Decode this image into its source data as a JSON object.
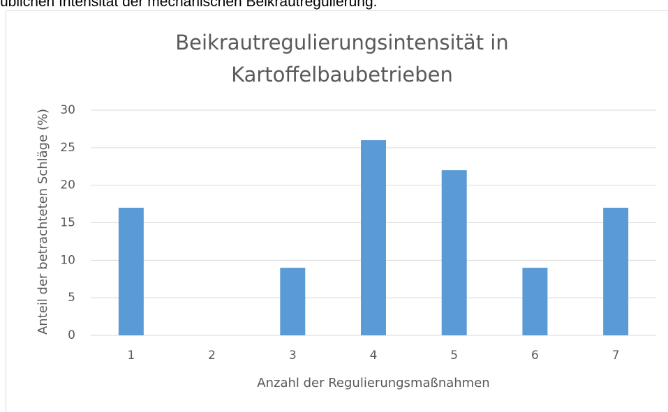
{
  "document_text": "üblichen Intensität der mechanischen Beikrautregulierung.",
  "chart_data": {
    "type": "bar",
    "title": "Beikrautregulierungsintensität in Kartoffelbaubetrieben",
    "x_label": "Anzahl der Regulierungsmaßnahmen",
    "y_label": "Anteil der betrachteten Schläge (%)",
    "categories": [
      "1",
      "2",
      "3",
      "4",
      "5",
      "6",
      "7"
    ],
    "values": [
      17,
      0,
      9,
      26,
      22,
      9,
      17
    ],
    "color": "#5b9bd5",
    "ylim": [
      0,
      30
    ],
    "yticks": [
      0,
      5,
      10,
      15,
      20,
      25,
      30
    ],
    "grid": true
  }
}
